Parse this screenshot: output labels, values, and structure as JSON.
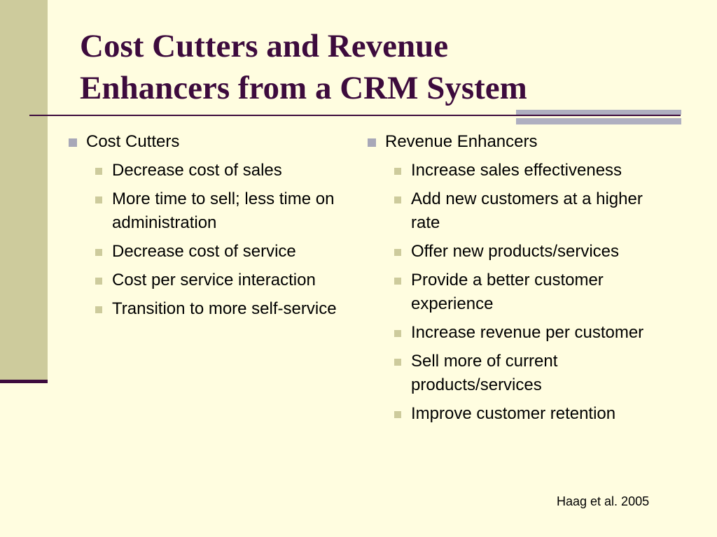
{
  "slide": {
    "title_line1": "Cost Cutters and Revenue",
    "title_line2": "Enhancers from a CRM System",
    "source": "Haag et al. 2005"
  },
  "left": {
    "heading": "Cost Cutters",
    "items": [
      "Decrease cost of sales",
      "More time to sell; less time on administration",
      "Decrease cost of service",
      "Cost per service interaction",
      "Transition to more self-service"
    ]
  },
  "right": {
    "heading": "Revenue Enhancers",
    "items": [
      "Increase sales effectiveness",
      "Add new customers at a higher rate",
      "Offer new products/services",
      "Provide a better customer experience",
      "Increase revenue per customer",
      "Sell more of current products/services",
      "Improve customer retention"
    ]
  },
  "colors": {
    "background": "#FFFDE0",
    "side_band": "#CDCB9C",
    "title": "#3D0B3D",
    "accent_grey": "#AFAFC0"
  },
  "icons": {
    "level1_bullet": "square-bullet-icon",
    "level2_bullet": "square-bullet-icon"
  }
}
